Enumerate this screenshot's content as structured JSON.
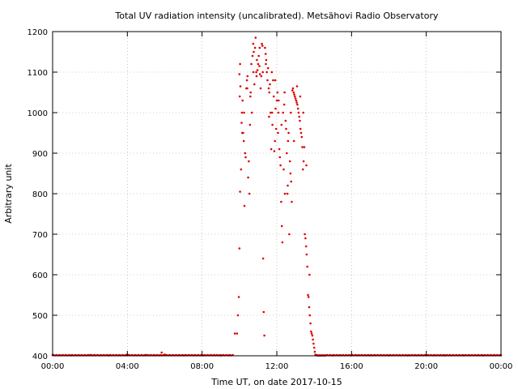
{
  "chart_data": {
    "type": "scatter",
    "title": "Total UV radiation intensity (uncalibrated). Metsähovi Radio Observatory",
    "xlabel": "Time UT, on date 2017-10-15",
    "ylabel": "Arbitrary unit",
    "xlim": [
      "00:00",
      "24:00"
    ],
    "ylim": [
      400,
      1200
    ],
    "x_tick_labels": [
      "00:00",
      "04:00",
      "08:00",
      "12:00",
      "16:00",
      "20:00",
      "00:00"
    ],
    "y_ticks": [
      400,
      500,
      600,
      700,
      800,
      900,
      1000,
      1100,
      1200
    ],
    "grid": true,
    "marker_color": "#e00000",
    "series": [
      {
        "x": [
          "00:00",
          "01:00",
          "02:00",
          "03:00",
          "04:00",
          "05:00",
          "05:50",
          "06:00",
          "07:00",
          "08:00",
          "09:00",
          "09:45",
          "09:52",
          "09:55",
          "09:58",
          "10:00",
          "10:00",
          "10:02",
          "10:02",
          "10:03",
          "10:05",
          "10:07",
          "10:08",
          "10:10",
          "10:12",
          "10:14",
          "10:16",
          "10:18",
          "10:20",
          "10:22",
          "10:24",
          "10:26",
          "10:28",
          "10:30",
          "10:32",
          "10:34",
          "10:36",
          "10:38",
          "10:40",
          "10:42",
          "10:44",
          "10:46",
          "10:48",
          "10:50",
          "10:52",
          "10:54",
          "10:56",
          "10:58",
          "11:00",
          "11:02",
          "11:04",
          "11:06",
          "11:08",
          "11:10",
          "11:12",
          "11:14",
          "11:16",
          "11:18",
          "11:20",
          "11:22",
          "11:24",
          "11:26",
          "11:28",
          "11:30",
          "11:32",
          "11:34",
          "11:36",
          "11:38",
          "11:40",
          "11:42",
          "11:44",
          "11:46",
          "11:48",
          "11:50",
          "11:52",
          "11:54",
          "11:56",
          "11:58",
          "12:00",
          "12:02",
          "12:04",
          "12:06",
          "12:08",
          "12:10",
          "12:12",
          "12:14",
          "12:16",
          "12:18",
          "12:20",
          "12:22",
          "12:24",
          "12:26",
          "12:28",
          "12:30",
          "12:32",
          "12:34",
          "12:36",
          "12:38",
          "12:40",
          "12:42",
          "12:44",
          "12:46",
          "12:48",
          "12:50",
          "12:52",
          "12:54",
          "12:56",
          "12:58",
          "13:00",
          "13:02",
          "13:04",
          "13:06",
          "13:08",
          "13:10",
          "13:12",
          "13:14",
          "13:16",
          "13:18",
          "13:20",
          "13:22",
          "13:24",
          "13:26",
          "13:28",
          "13:30",
          "13:32",
          "13:34",
          "13:36",
          "13:38",
          "13:40",
          "13:42",
          "13:44",
          "13:46",
          "13:48",
          "13:50",
          "13:52",
          "13:54",
          "13:56",
          "13:58",
          "14:00",
          "14:02",
          "14:04",
          "14:06",
          "14:08",
          "14:10",
          "14:12",
          "14:14",
          "14:16",
          "14:18",
          "14:20",
          "14:22",
          "14:24",
          "14:26",
          "14:28",
          "14:30",
          "14:32",
          "14:34",
          "14:36",
          "15:00",
          "16:00",
          "17:00",
          "18:00",
          "19:00",
          "20:00",
          "21:00",
          "22:00",
          "23:00",
          "24:00",
          "10:01",
          "10:09",
          "10:15",
          "10:25",
          "10:35",
          "10:45",
          "10:55",
          "11:05",
          "11:15",
          "11:25",
          "11:35",
          "11:45",
          "11:55",
          "12:05",
          "12:15",
          "12:25",
          "12:35",
          "12:45",
          "12:55",
          "13:05",
          "13:15",
          "13:25",
          "13:35",
          "13:45"
        ],
        "y": [
          402,
          401,
          402,
          401,
          403,
          402,
          408,
          403,
          401,
          401,
          401,
          455,
          455,
          500,
          545,
          665,
          1095,
          1120,
          805,
          1065,
          860,
          975,
          1000,
          1030,
          950,
          930,
          770,
          900,
          890,
          1060,
          1080,
          1090,
          840,
          880,
          800,
          970,
          1050,
          1120,
          1000,
          1140,
          1170,
          1150,
          1070,
          1160,
          1185,
          1100,
          1130,
          1105,
          1120,
          1140,
          1115,
          1095,
          1060,
          1090,
          1170,
          1165,
          640,
          508,
          450,
          1160,
          1145,
          1130,
          1100,
          1080,
          1110,
          1060,
          1050,
          1070,
          1000,
          910,
          1100,
          970,
          1080,
          1040,
          905,
          930,
          1010,
          960,
          1030,
          1050,
          950,
          1030,
          910,
          890,
          870,
          780,
          720,
          680,
          1000,
          860,
          1020,
          800,
          980,
          960,
          900,
          800,
          930,
          950,
          700,
          880,
          850,
          830,
          780,
          1055,
          1060,
          1050,
          1045,
          1040,
          1035,
          1030,
          1025,
          1020,
          1010,
          1000,
          990,
          980,
          960,
          950,
          940,
          915,
          860,
          880,
          915,
          700,
          690,
          670,
          650,
          620,
          550,
          545,
          520,
          500,
          480,
          460,
          455,
          450,
          440,
          430,
          420,
          410,
          403,
          402,
          401,
          401,
          401,
          401,
          401,
          401,
          401,
          401,
          401,
          401,
          401,
          401,
          401,
          401,
          401,
          401,
          401,
          401,
          401,
          401,
          401,
          401,
          401,
          401,
          401,
          1040,
          950,
          1000,
          1060,
          1040,
          1100,
          1090,
          1160,
          1100,
          1120,
          990,
          1000,
          1080,
          1000,
          970,
          1050,
          820,
          1000,
          930,
          1065,
          1040,
          1000,
          870,
          600
        ]
      }
    ]
  }
}
